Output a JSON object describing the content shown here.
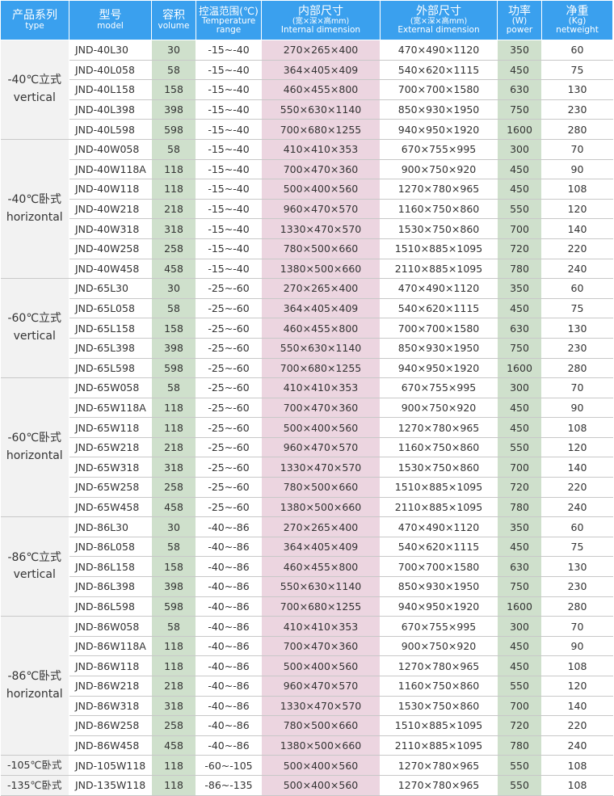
{
  "headers": {
    "type": {
      "zh": "产品系列",
      "en": "type"
    },
    "model": {
      "zh": "型号",
      "en": "model"
    },
    "volume": {
      "zh": "容积",
      "en": "volume"
    },
    "temp": {
      "zh": "控温范围(℃)",
      "en": "Temperature range"
    },
    "inner": {
      "zh": "内部尺寸",
      "sub": "(宽×深×高mm)",
      "en": "Internal dimension"
    },
    "outer": {
      "zh": "外部尺寸",
      "sub": "(宽×深×高mm)",
      "en": "External dimension"
    },
    "power": {
      "zh": "功率",
      "sub": "(W)",
      "en": "power"
    },
    "weight": {
      "zh": "净重",
      "sub": "(Kg)",
      "en": "netweight"
    }
  },
  "groups": [
    {
      "zh": "-40℃立式",
      "en": "vertical",
      "rows": [
        {
          "model": "JND-40L30",
          "volume": "30",
          "temp": "-15~-40",
          "inner": "270×265×400",
          "outer": "470×490×1120",
          "power": "350",
          "weight": "60"
        },
        {
          "model": "JND-40L058",
          "volume": "58",
          "temp": "-15~-40",
          "inner": "364×405×409",
          "outer": "540×620×1115",
          "power": "450",
          "weight": "75"
        },
        {
          "model": "JND-40L158",
          "volume": "158",
          "temp": "-15~-40",
          "inner": "460×455×800",
          "outer": "700×700×1580",
          "power": "630",
          "weight": "130"
        },
        {
          "model": "JND-40L398",
          "volume": "398",
          "temp": "-15~-40",
          "inner": "550×630×1140",
          "outer": "850×930×1950",
          "power": "750",
          "weight": "230"
        },
        {
          "model": "JND-40L598",
          "volume": "598",
          "temp": "-15~-40",
          "inner": "700×680×1255",
          "outer": "940×950×1920",
          "power": "1600",
          "weight": "280"
        }
      ]
    },
    {
      "zh": "-40℃卧式",
      "en": "horizontal",
      "rows": [
        {
          "model": "JND-40W058",
          "volume": "58",
          "temp": "-15~-40",
          "inner": "410×410×353",
          "outer": "670×755×995",
          "power": "300",
          "weight": "70"
        },
        {
          "model": "JND-40W118A",
          "volume": "118",
          "temp": "-15~-40",
          "inner": "700×470×360",
          "outer": "900×750×920",
          "power": "450",
          "weight": "90"
        },
        {
          "model": "JND-40W118",
          "volume": "118",
          "temp": "-15~-40",
          "inner": "500×400×560",
          "outer": "1270×780×965",
          "power": "450",
          "weight": "108"
        },
        {
          "model": "JND-40W218",
          "volume": "218",
          "temp": "-15~-40",
          "inner": "960×470×570",
          "outer": "1160×750×860",
          "power": "550",
          "weight": "120"
        },
        {
          "model": "JND-40W318",
          "volume": "318",
          "temp": "-15~-40",
          "inner": "1330×470×570",
          "outer": "1530×750×860",
          "power": "700",
          "weight": "140"
        },
        {
          "model": "JND-40W258",
          "volume": "258",
          "temp": "-15~-40",
          "inner": "780×500×660",
          "outer": "1510×885×1095",
          "power": "720",
          "weight": "220"
        },
        {
          "model": "JND-40W458",
          "volume": "458",
          "temp": "-15~-40",
          "inner": "1380×500×660",
          "outer": "2110×885×1095",
          "power": "780",
          "weight": "240"
        }
      ]
    },
    {
      "zh": "-60℃立式",
      "en": "vertical",
      "rows": [
        {
          "model": "JND-65L30",
          "volume": "30",
          "temp": "-25~-60",
          "inner": "270×265×400",
          "outer": "470×490×1120",
          "power": "350",
          "weight": "60"
        },
        {
          "model": "JND-65L058",
          "volume": "58",
          "temp": "-25~-60",
          "inner": "364×405×409",
          "outer": "540×620×1115",
          "power": "450",
          "weight": "75"
        },
        {
          "model": "JND-65L158",
          "volume": "158",
          "temp": "-25~-60",
          "inner": "460×455×800",
          "outer": "700×700×1580",
          "power": "630",
          "weight": "130"
        },
        {
          "model": "JND-65L398",
          "volume": "398",
          "temp": "-25~-60",
          "inner": "550×630×1140",
          "outer": "850×930×1950",
          "power": "750",
          "weight": "230"
        },
        {
          "model": "JND-65L598",
          "volume": "598",
          "temp": "-25~-60",
          "inner": "700×680×1255",
          "outer": "940×950×1920",
          "power": "1600",
          "weight": "280"
        }
      ]
    },
    {
      "zh": "-60℃卧式",
      "en": "horizontal",
      "rows": [
        {
          "model": "JND-65W058",
          "volume": "58",
          "temp": "-25~-60",
          "inner": "410×410×353",
          "outer": "670×755×995",
          "power": "300",
          "weight": "70"
        },
        {
          "model": "JND-65W118A",
          "volume": "118",
          "temp": "-25~-60",
          "inner": "700×470×360",
          "outer": "900×750×920",
          "power": "450",
          "weight": "90"
        },
        {
          "model": "JND-65W118",
          "volume": "118",
          "temp": "-25~-60",
          "inner": "500×400×560",
          "outer": "1270×780×965",
          "power": "450",
          "weight": "108"
        },
        {
          "model": "JND-65W218",
          "volume": "218",
          "temp": "-25~-60",
          "inner": "960×470×570",
          "outer": "1160×750×860",
          "power": "550",
          "weight": "120"
        },
        {
          "model": "JND-65W318",
          "volume": "318",
          "temp": "-25~-60",
          "inner": "1330×470×570",
          "outer": "1530×750×860",
          "power": "700",
          "weight": "140"
        },
        {
          "model": "JND-65W258",
          "volume": "258",
          "temp": "-25~-60",
          "inner": "780×500×660",
          "outer": "1510×885×1095",
          "power": "720",
          "weight": "220"
        },
        {
          "model": "JND-65W458",
          "volume": "458",
          "temp": "-25~-60",
          "inner": "1380×500×660",
          "outer": "2110×885×1095",
          "power": "780",
          "weight": "240"
        }
      ]
    },
    {
      "zh": "-86℃立式",
      "en": "vertical",
      "rows": [
        {
          "model": "JND-86L30",
          "volume": "30",
          "temp": "-40~-86",
          "inner": "270×265×400",
          "outer": "470×490×1120",
          "power": "350",
          "weight": "60"
        },
        {
          "model": "JND-86L058",
          "volume": "58",
          "temp": "-40~-86",
          "inner": "364×405×409",
          "outer": "540×620×1115",
          "power": "450",
          "weight": "75"
        },
        {
          "model": "JND-86L158",
          "volume": "158",
          "temp": "-40~-86",
          "inner": "460×455×800",
          "outer": "700×700×1580",
          "power": "630",
          "weight": "130"
        },
        {
          "model": "JND-86L398",
          "volume": "398",
          "temp": "-40~-86",
          "inner": "550×630×1140",
          "outer": "850×930×1950",
          "power": "750",
          "weight": "230"
        },
        {
          "model": "JND-86L598",
          "volume": "598",
          "temp": "-40~-86",
          "inner": "700×680×1255",
          "outer": "940×950×1920",
          "power": "1600",
          "weight": "280"
        }
      ]
    },
    {
      "zh": "-86℃卧式",
      "en": "horizontal",
      "rows": [
        {
          "model": "JND-86W058",
          "volume": "58",
          "temp": "-40~-86",
          "inner": "410×410×353",
          "outer": "670×755×995",
          "power": "300",
          "weight": "70"
        },
        {
          "model": "JND-86W118A",
          "volume": "118",
          "temp": "-40~-86",
          "inner": "700×470×360",
          "outer": "900×750×920",
          "power": "450",
          "weight": "90"
        },
        {
          "model": "JND-86W118",
          "volume": "118",
          "temp": "-40~-86",
          "inner": "500×400×560",
          "outer": "1270×780×965",
          "power": "450",
          "weight": "108"
        },
        {
          "model": "JND-86W218",
          "volume": "218",
          "temp": "-40~-86",
          "inner": "960×470×570",
          "outer": "1160×750×860",
          "power": "550",
          "weight": "120"
        },
        {
          "model": "JND-86W318",
          "volume": "318",
          "temp": "-40~-86",
          "inner": "1330×470×570",
          "outer": "1530×750×860",
          "power": "700",
          "weight": "140"
        },
        {
          "model": "JND-86W258",
          "volume": "258",
          "temp": "-40~-86",
          "inner": "780×500×660",
          "outer": "1510×885×1095",
          "power": "720",
          "weight": "220"
        },
        {
          "model": "JND-86W458",
          "volume": "458",
          "temp": "-40~-86",
          "inner": "1380×500×660",
          "outer": "2110×885×1095",
          "power": "780",
          "weight": "240"
        }
      ]
    },
    {
      "zh": "-105℃卧式",
      "en": "",
      "rows": [
        {
          "model": "JND-105W118",
          "volume": "118",
          "temp": "-60~-105",
          "inner": "500×400×560",
          "outer": "1270×780×965",
          "power": "550",
          "weight": "108"
        }
      ]
    },
    {
      "zh": "-135℃卧式",
      "en": "",
      "rows": [
        {
          "model": "JND-135W118",
          "volume": "118",
          "temp": "-86~-135",
          "inner": "500×400×560",
          "outer": "1270×780×965",
          "power": "550",
          "weight": "108"
        }
      ]
    }
  ]
}
